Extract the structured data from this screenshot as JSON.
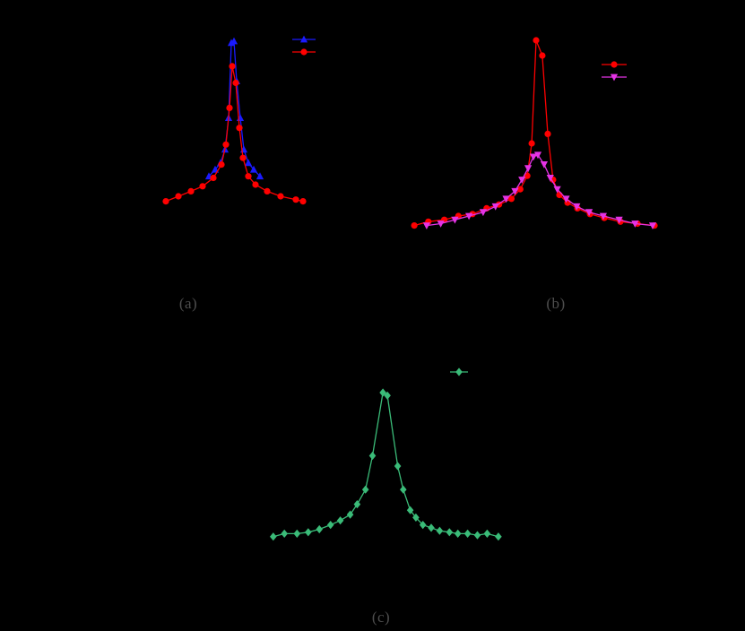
{
  "figure": {
    "background": "#000000",
    "panel_label_color": "#4e4e4e"
  },
  "chart_data": [
    {
      "panel": "a",
      "panel_label": "(a)",
      "type": "line",
      "title": "",
      "xlabel": "",
      "ylabel": "",
      "axes_visible": false,
      "grid": false,
      "xlim": [
        -9,
        9
      ],
      "ylim": [
        0,
        1.15
      ],
      "legend_position": "upper-right",
      "series": [
        {
          "name": "blue-triangle-series",
          "marker": "triangle-up",
          "color": "#1a1aff",
          "x": [
            -2.7,
            -2.0,
            -1.4,
            -0.9,
            -0.5,
            -0.2,
            0.1,
            0.4,
            0.8,
            1.2,
            1.7,
            2.3,
            3.0
          ],
          "y": [
            0.19,
            0.23,
            0.27,
            0.35,
            0.54,
            0.99,
            1.0,
            0.76,
            0.54,
            0.35,
            0.27,
            0.23,
            0.19
          ]
        },
        {
          "name": "red-circle-series",
          "marker": "circle",
          "color": "#ff0000",
          "x": [
            -7.5,
            -6.1,
            -4.7,
            -3.4,
            -2.2,
            -1.3,
            -0.8,
            -0.4,
            -0.1,
            0.3,
            0.7,
            1.1,
            1.7,
            2.5,
            3.8,
            5.3,
            7.0,
            7.8
          ],
          "y": [
            0.04,
            0.07,
            0.1,
            0.13,
            0.18,
            0.26,
            0.38,
            0.6,
            0.85,
            0.75,
            0.48,
            0.3,
            0.19,
            0.14,
            0.1,
            0.07,
            0.05,
            0.04
          ]
        }
      ]
    },
    {
      "panel": "b",
      "panel_label": "(b)",
      "type": "line",
      "title": "",
      "xlabel": "",
      "ylabel": "",
      "axes_visible": false,
      "grid": false,
      "xlim": [
        -7.5,
        7.5
      ],
      "ylim": [
        0,
        1.1
      ],
      "legend_position": "upper-right",
      "series": [
        {
          "name": "red-circle-series",
          "marker": "circle",
          "color": "#ff0000",
          "x": [
            -6.9,
            -6.1,
            -5.2,
            -4.4,
            -3.6,
            -2.8,
            -2.1,
            -1.4,
            -0.9,
            -0.5,
            -0.25,
            0.0,
            0.35,
            0.66,
            0.96,
            1.32,
            1.78,
            2.34,
            3.05,
            3.86,
            4.77,
            5.74,
            6.7
          ],
          "y": [
            0.03,
            0.05,
            0.06,
            0.08,
            0.09,
            0.12,
            0.14,
            0.17,
            0.22,
            0.29,
            0.46,
            1.0,
            0.92,
            0.51,
            0.27,
            0.19,
            0.15,
            0.12,
            0.09,
            0.07,
            0.05,
            0.04,
            0.03
          ]
        },
        {
          "name": "magenta-triangle-series",
          "marker": "triangle-down",
          "color": "#e533e5",
          "x": [
            -6.2,
            -5.4,
            -4.6,
            -3.8,
            -3.0,
            -2.3,
            -1.7,
            -1.2,
            -0.8,
            -0.45,
            -0.15,
            0.1,
            0.45,
            0.8,
            1.2,
            1.7,
            2.3,
            3.0,
            3.8,
            4.7,
            5.6,
            6.6
          ],
          "y": [
            0.03,
            0.04,
            0.06,
            0.08,
            0.1,
            0.13,
            0.17,
            0.21,
            0.27,
            0.33,
            0.39,
            0.4,
            0.35,
            0.28,
            0.22,
            0.17,
            0.13,
            0.1,
            0.08,
            0.06,
            0.04,
            0.03
          ]
        }
      ]
    },
    {
      "panel": "c",
      "panel_label": "(c)",
      "type": "line",
      "title": "",
      "xlabel": "",
      "ylabel": "",
      "axes_visible": false,
      "grid": false,
      "xlim": [
        -9,
        9
      ],
      "ylim": [
        0,
        1.15
      ],
      "legend_position": "upper-right",
      "series": [
        {
          "name": "green-diamond-series",
          "marker": "diamond",
          "color": "#3abb78",
          "x": [
            -7.9,
            -7.1,
            -6.2,
            -5.4,
            -4.6,
            -3.8,
            -3.1,
            -2.4,
            -1.9,
            -1.3,
            -0.8,
            -0.06,
            0.26,
            1.0,
            1.4,
            1.9,
            2.3,
            2.8,
            3.4,
            4.0,
            4.7,
            5.3,
            6.0,
            6.7,
            7.4,
            8.2
          ],
          "y": [
            0.02,
            0.04,
            0.04,
            0.05,
            0.07,
            0.1,
            0.13,
            0.17,
            0.24,
            0.34,
            0.57,
            1.0,
            0.98,
            0.5,
            0.34,
            0.2,
            0.15,
            0.1,
            0.08,
            0.06,
            0.05,
            0.04,
            0.04,
            0.03,
            0.04,
            0.02
          ]
        }
      ]
    }
  ]
}
